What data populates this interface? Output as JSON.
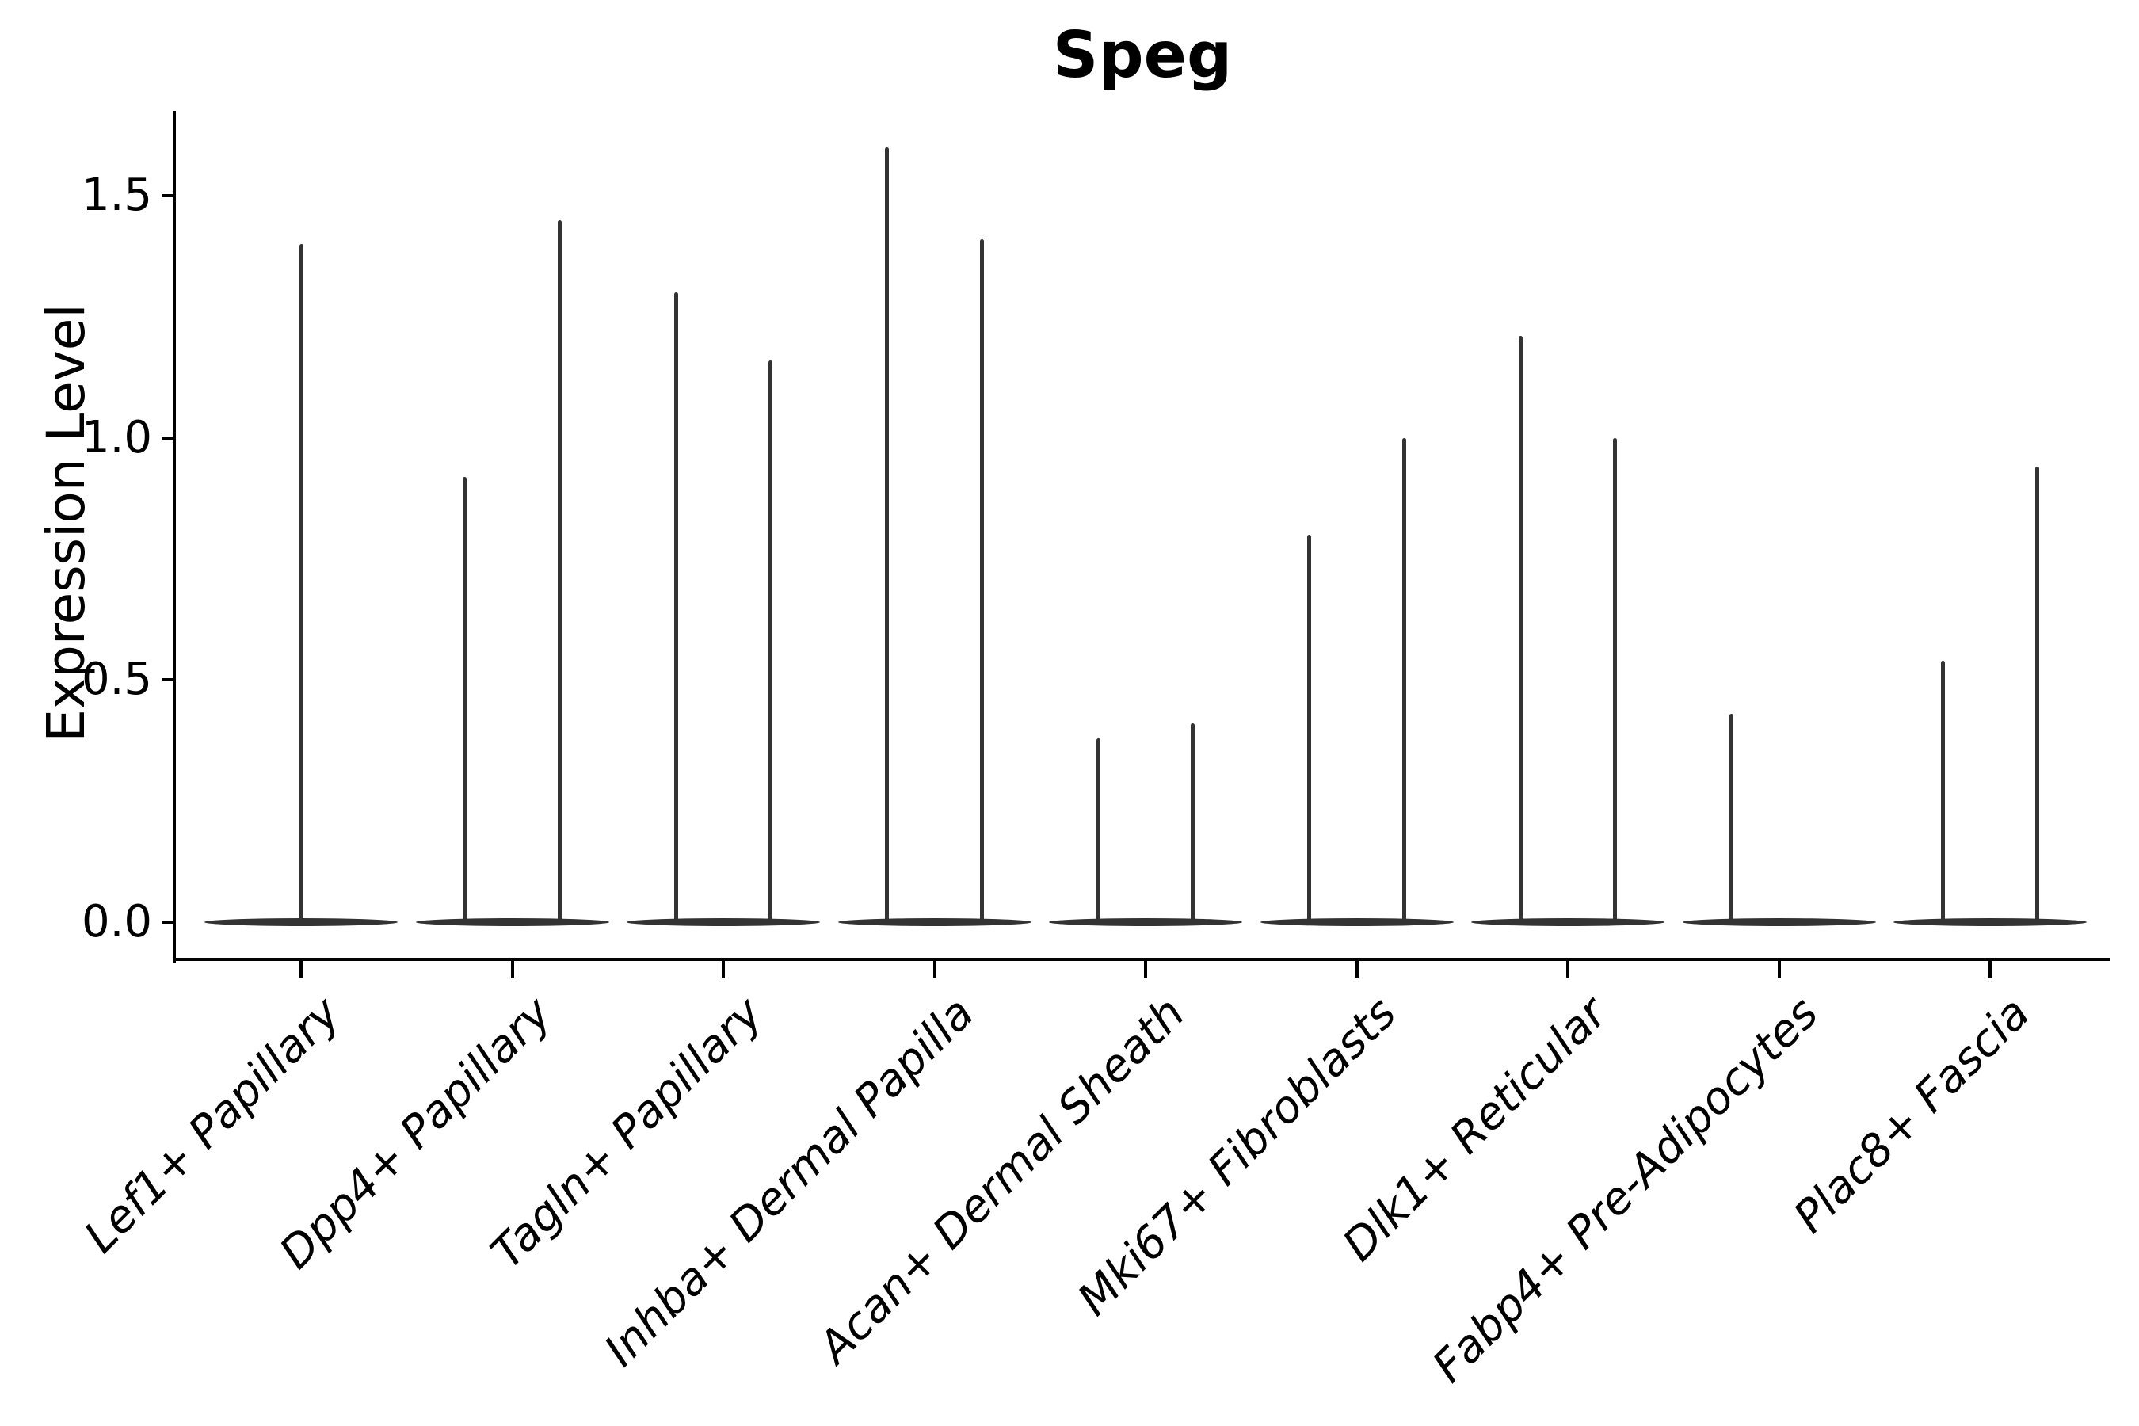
{
  "title": "Speg",
  "axes": {
    "ylabel": "Expression Level",
    "ytick_labels": [
      "0.0",
      "0.5",
      "1.0",
      "1.5"
    ],
    "ytick_values": [
      0.0,
      0.5,
      1.0,
      1.5
    ]
  },
  "colors": {
    "violin_line": "#333333",
    "axis": "#000000",
    "text": "#000000",
    "background": "#ffffff"
  },
  "chart_data": {
    "type": "violin",
    "title": "Speg",
    "xlabel": "",
    "ylabel": "Expression Level",
    "ylim": [
      -0.08,
      1.675
    ],
    "yticks": [
      0.0,
      0.5,
      1.0,
      1.5
    ],
    "grid": false,
    "legend": "none",
    "baseline_value": 0.0,
    "categories": [
      "Lef1+ Papillary",
      "Dpp4+ Papillary",
      "Tagln+ Papillary",
      "Inhba+ Dermal Papilla",
      "Acan+ Dermal Sheath",
      "Mki67+ Fibroblasts",
      "Dlk1+ Reticular",
      "Fabp4+ Pre-Adipocytes",
      "Plac8+ Fascia"
    ],
    "violins": [
      {
        "category": "Lef1+ Papillary",
        "spikes": [
          {
            "offset": 0.0,
            "max": 1.4
          }
        ]
      },
      {
        "category": "Dpp4+ Papillary",
        "spikes": [
          {
            "offset": -0.225,
            "max": 0.92
          },
          {
            "offset": 0.225,
            "max": 1.45
          }
        ]
      },
      {
        "category": "Tagln+ Papillary",
        "spikes": [
          {
            "offset": -0.225,
            "max": 1.3
          },
          {
            "offset": 0.225,
            "max": 1.16
          }
        ]
      },
      {
        "category": "Inhba+ Dermal Papilla",
        "spikes": [
          {
            "offset": -0.225,
            "max": 1.6
          },
          {
            "offset": 0.225,
            "max": 1.41
          }
        ]
      },
      {
        "category": "Acan+ Dermal Sheath",
        "spikes": [
          {
            "offset": -0.225,
            "max": 0.38
          },
          {
            "offset": 0.225,
            "max": 0.41
          }
        ]
      },
      {
        "category": "Mki67+ Fibroblasts",
        "spikes": [
          {
            "offset": -0.225,
            "max": 0.8
          },
          {
            "offset": 0.225,
            "max": 1.0
          }
        ]
      },
      {
        "category": "Dlk1+ Reticular",
        "spikes": [
          {
            "offset": -0.225,
            "max": 1.21
          },
          {
            "offset": 0.225,
            "max": 1.0
          }
        ]
      },
      {
        "category": "Fabp4+ Pre-Adipocytes",
        "spikes": [
          {
            "offset": -0.225,
            "max": 0.43
          }
        ]
      },
      {
        "category": "Plac8+ Fascia",
        "spikes": [
          {
            "offset": -0.225,
            "max": 0.54
          },
          {
            "offset": 0.225,
            "max": 0.94
          }
        ]
      }
    ]
  }
}
